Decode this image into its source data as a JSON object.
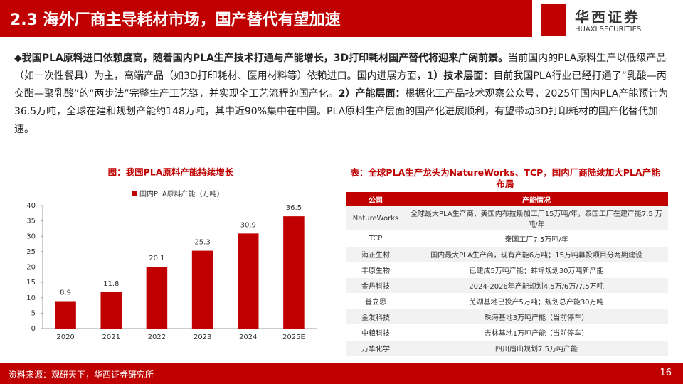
{
  "header": {
    "title": "2.3 海外厂商主导耗材市场，国产替代有望加速",
    "logo_cn": "华西证券",
    "logo_en": "HUAXI SECURITIES"
  },
  "body": {
    "runs": [
      {
        "text": "◆我国PLA原料进口依赖度高，随着国内PLA生产技术打通与产能增长，3D打印耗材国产替代将迎来广阔前景。",
        "bold": true
      },
      {
        "text": "当前国内的PLA原料生产以低级产品（如一次性餐具）为主，高端产品（如3D打印耗材、医用材料等）依赖进口。国内进展方面，",
        "bold": false
      },
      {
        "text": "1）技术层面：",
        "bold": true
      },
      {
        "text": "目前我国PLA行业已经打通了“乳酸—丙交酯—聚乳酸”的“两步法”完整生产工艺链，并实现全工艺流程的国产化。",
        "bold": false
      },
      {
        "text": "2）产能层面：",
        "bold": true
      },
      {
        "text": "根据化工产品技术观察公众号，2025年国内PLA产能预计为36.5万吨，全球在建和规划产能约148万吨，其中近90%集中在中国。PLA原料生产层面的国产化进展顺利，有望带动3D打印耗材的国产化替代加速。",
        "bold": false
      }
    ]
  },
  "chart_data": {
    "type": "bar",
    "title": "图：我国PLA原料产能持续增长",
    "categories": [
      "2020",
      "2021",
      "2022",
      "2023",
      "2024",
      "2025E"
    ],
    "series": [
      {
        "name": "国内PLA原料产能（万吨）",
        "color": "#c00000",
        "values": [
          8.9,
          11.8,
          20.1,
          25.3,
          30.9,
          36.5
        ]
      }
    ],
    "ylim": [
      0,
      40
    ],
    "yticks": [
      0,
      5,
      10,
      15,
      20,
      25,
      30,
      35,
      40
    ],
    "grid": false
  },
  "table": {
    "title": "表：全球PLA生产龙头为NatureWorks、TCP，国内厂商陆续加大PLA产能布局",
    "columns": [
      "公司",
      "产能情况"
    ],
    "rows": [
      [
        "NatureWorks",
        "全球最大PLA生产商，美国内布拉斯加工厂15万吨/年，泰国工厂在建产能7.5 万吨/年"
      ],
      [
        "TCP",
        "泰国工厂7.5万吨/年"
      ],
      [
        "海正生材",
        "国内最大PLA生产商，现有产能6万吨；15万吨募投项目分两期建设"
      ],
      [
        "丰原生物",
        "已建成5万吨产能；蚌埠规划30万吨新产能"
      ],
      [
        "金丹科技",
        "2024-2026年产能规划4.5万/6万/7.5万吨"
      ],
      [
        "普立思",
        "芜湖基地已投产5万吨；规划总产能30万吨"
      ],
      [
        "金发科技",
        "珠海基地3万吨产能（当前停车）"
      ],
      [
        "中粮科技",
        "吉林基地1万吨产能（当前停车）"
      ],
      [
        "万华化学",
        "四川眉山规划7.5万吨产能"
      ]
    ]
  },
  "footer": {
    "source": "资料来源：观研天下，华西证券研究所",
    "page": "16"
  }
}
